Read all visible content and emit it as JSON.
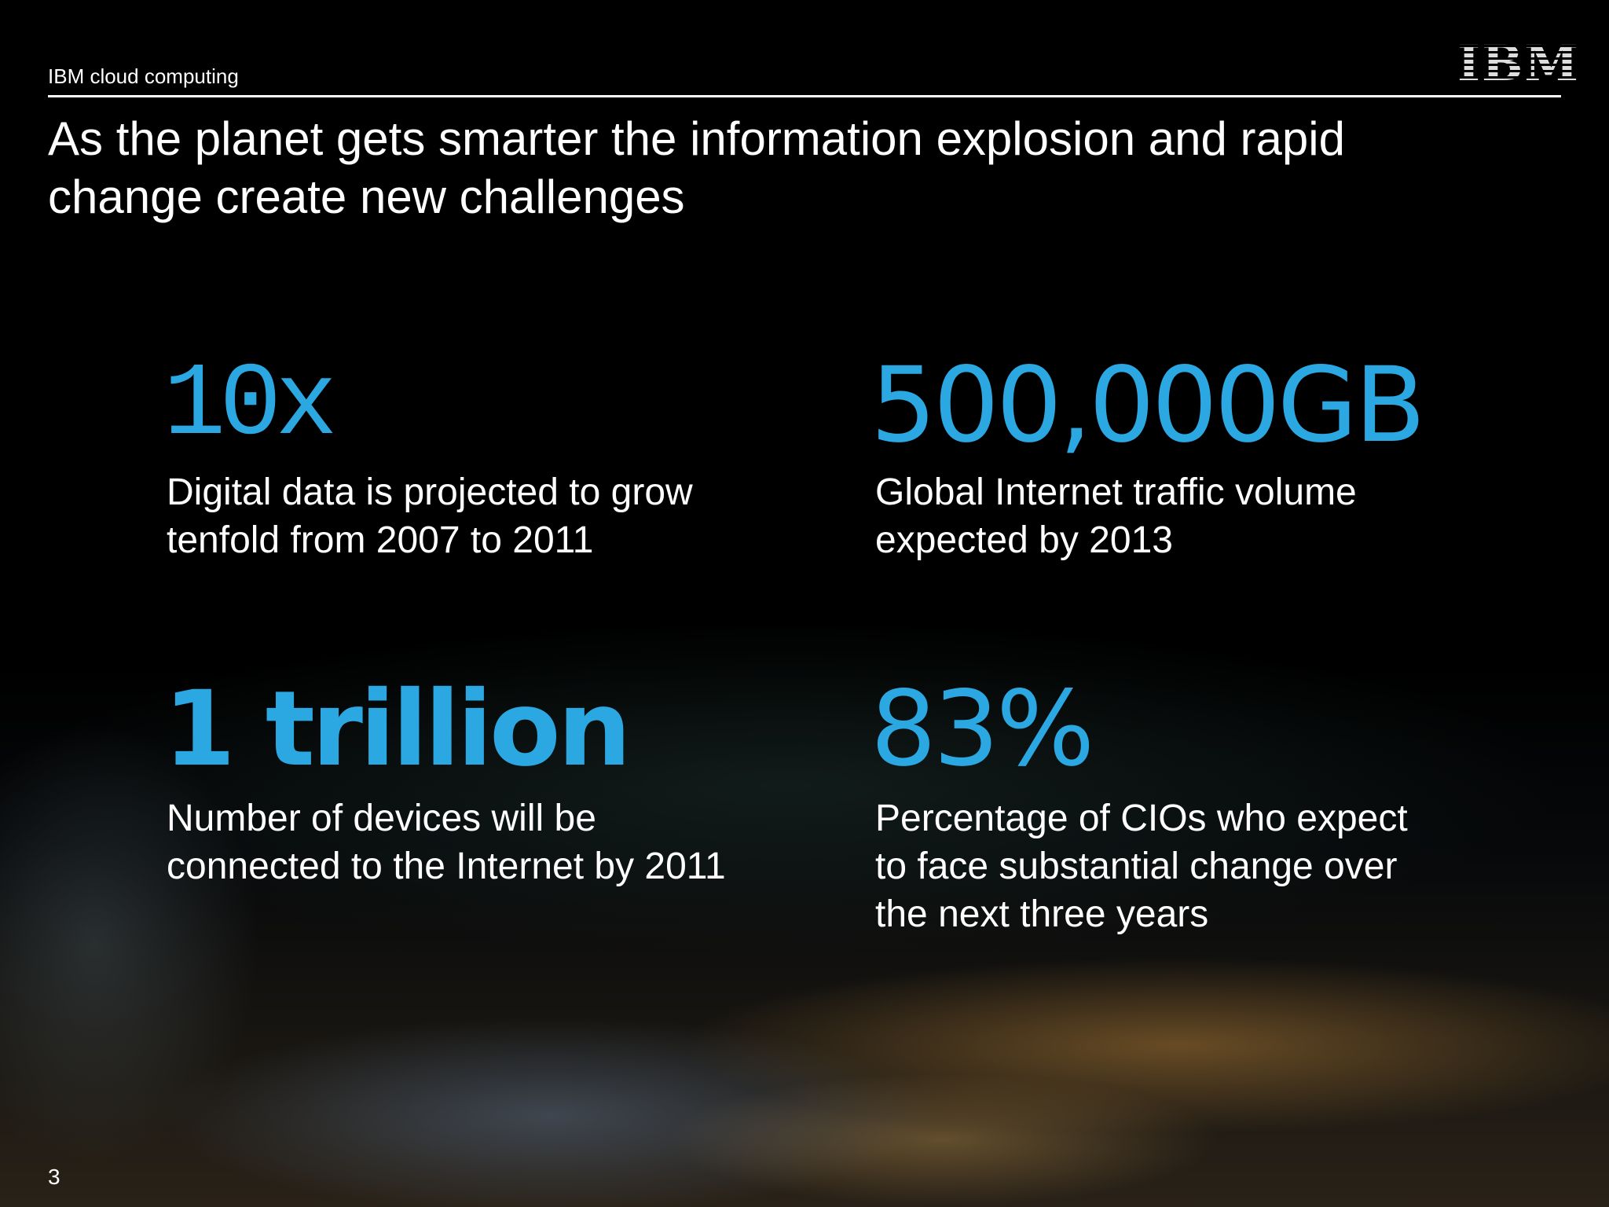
{
  "header": {
    "label": "IBM cloud computing",
    "logo": "IBM"
  },
  "title_lines": [
    "As the planet gets smarter the information explosion and rapid",
    "change create new challenges"
  ],
  "stats": [
    {
      "figure": "10x",
      "description_lines": [
        "Digital data is projected to grow",
        "tenfold from 2007 to 2011"
      ]
    },
    {
      "figure": "500,000GB",
      "description_lines": [
        "Global Internet traffic volume",
        "expected by 2013"
      ]
    },
    {
      "figure": "1 trillion",
      "description_lines": [
        "Number of devices will be",
        "connected to the Internet by 2011"
      ]
    },
    {
      "figure": "83%",
      "description_lines": [
        "Percentage of CIOs who expect",
        "to face substantial change over",
        "the next three years"
      ]
    }
  ],
  "footer": {
    "page_number": "3"
  }
}
